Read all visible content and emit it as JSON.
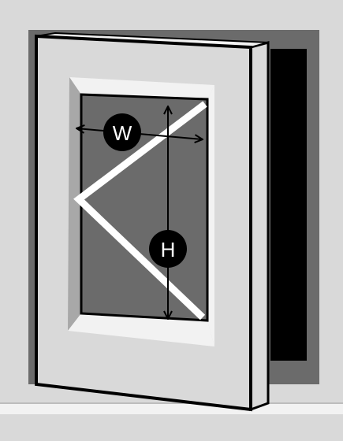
{
  "labels": {
    "width": "W",
    "height": "H"
  },
  "colors": {
    "wall": "#d9d9d9",
    "wall_outline": "#bdbdbd",
    "recess": "#6b6b6b",
    "opening": "#000000",
    "sash_frame": "#d9d9d9",
    "bevel_light": "#f2f2f2",
    "bevel_dark": "#a8a8a8",
    "glass": "#6b6b6b",
    "outline": "#000000",
    "opening_indicator": "#ffffff",
    "badge": "#000000",
    "badge_text": "#ffffff"
  },
  "icons": {
    "width_badge": "circle-letter-w",
    "height_badge": "circle-letter-h",
    "width_arrow": "double-headed-horizontal-arrow",
    "height_arrow": "double-headed-vertical-arrow"
  }
}
